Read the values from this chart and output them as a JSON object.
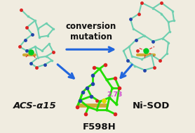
{
  "background_color": "#f0ece0",
  "arrow_color": "#2266dd",
  "arrow_lw": 2.2,
  "conversion_text": "conversion\nmutation",
  "conversion_text_weight": "bold",
  "conversion_text_size": 8.5,
  "conversion_text_color": "#111111",
  "label_acs": "ACS-α15",
  "label_nisod": "Ni-SOD",
  "label_f598h": "F598H",
  "label_fontsize": 9.5,
  "label_fontweight": "bold",
  "label_color": "#111111",
  "dist_label": "2.73",
  "dist_label_color": "#cc44cc",
  "dist_label_size": 6.5,
  "fig_width": 2.78,
  "fig_height": 1.89,
  "dpi": 100,
  "teal": "#6ecfb0",
  "teal_dark": "#3aaa88",
  "green_bright": "#22dd00",
  "red_atom": "#dd2222",
  "blue_atom": "#2244aa",
  "gold_atom": "#ccaa33",
  "ni_green": "#00cc22"
}
